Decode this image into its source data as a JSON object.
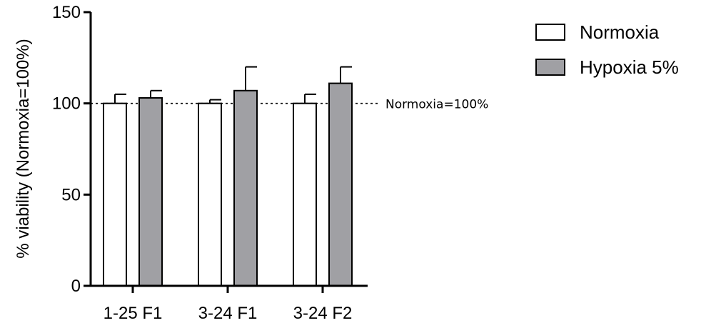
{
  "chart_data": {
    "type": "bar",
    "title": "",
    "xlabel": "",
    "ylabel": "% viability (Normoxia=100%)",
    "ylim": [
      0,
      150
    ],
    "yticks": [
      0,
      50,
      100,
      150
    ],
    "categories": [
      "1-25 F1",
      "3-24 F1",
      "3-24 F2"
    ],
    "series": [
      {
        "name": "Normoxia",
        "values": [
          100,
          100,
          100
        ],
        "error": [
          5,
          2,
          5
        ],
        "color": "#ffffff"
      },
      {
        "name": "Hypoxia 5%",
        "values": [
          103,
          107,
          111
        ],
        "error": [
          4,
          13,
          9
        ],
        "color": "#a0a0a4"
      }
    ],
    "reference_line": {
      "value": 100,
      "label": "Normoxia=100%"
    },
    "legend_position": "top-right",
    "grid": false
  }
}
